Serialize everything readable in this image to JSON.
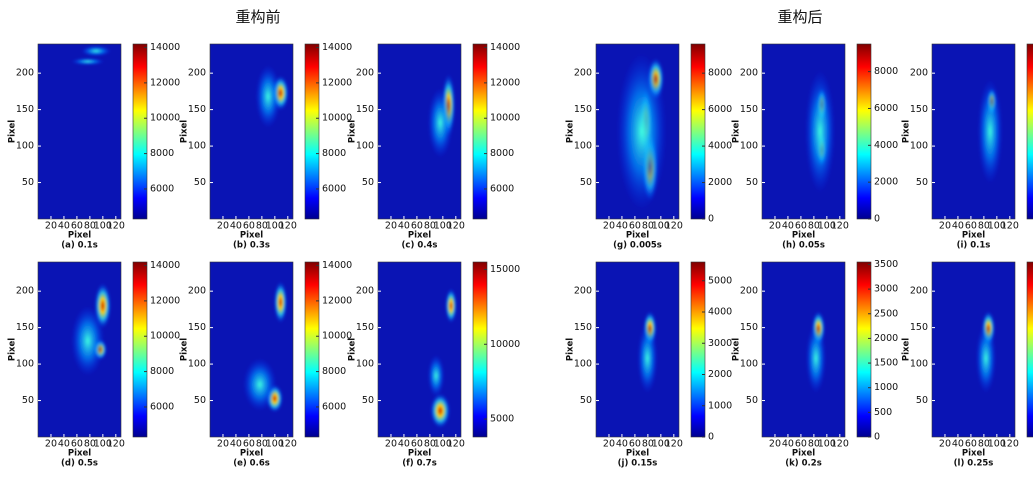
{
  "headings": [
    "重构前",
    "重构后"
  ],
  "chart_data": [
    {
      "type": "heatmap",
      "title": "(a) 0.1s",
      "xlabel": "Pixel",
      "ylabel": "Pixel",
      "xlim": [
        0,
        128
      ],
      "ylim": [
        0,
        240
      ],
      "xticks": [
        20,
        40,
        60,
        80,
        100,
        120
      ],
      "yticks": [
        50,
        100,
        150,
        200
      ],
      "clim": [
        4300,
        14200
      ],
      "cticks": [
        6000,
        8000,
        10000,
        12000,
        14000
      ]
    },
    {
      "type": "heatmap",
      "title": "(b) 0.3s",
      "xlabel": "Pixel",
      "ylabel": "Pixel",
      "xlim": [
        0,
        128
      ],
      "ylim": [
        0,
        240
      ],
      "xticks": [
        20,
        40,
        60,
        80,
        100,
        120
      ],
      "yticks": [
        50,
        100,
        150,
        200
      ],
      "clim": [
        4300,
        14200
      ],
      "cticks": [
        6000,
        8000,
        10000,
        12000,
        14000
      ]
    },
    {
      "type": "heatmap",
      "title": "(c) 0.4s",
      "xlabel": "Pixel",
      "ylabel": "Pixel",
      "xlim": [
        0,
        128
      ],
      "ylim": [
        0,
        240
      ],
      "xticks": [
        20,
        40,
        60,
        80,
        100,
        120
      ],
      "yticks": [
        50,
        100,
        150,
        200
      ],
      "clim": [
        4300,
        14200
      ],
      "cticks": [
        6000,
        8000,
        10000,
        12000,
        14000
      ]
    },
    {
      "type": "heatmap",
      "title": "(d) 0.5s",
      "xlabel": "Pixel",
      "ylabel": "Pixel",
      "xlim": [
        0,
        128
      ],
      "ylim": [
        0,
        240
      ],
      "xticks": [
        20,
        40,
        60,
        80,
        100,
        120
      ],
      "yticks": [
        50,
        100,
        150,
        200
      ],
      "clim": [
        4300,
        14200
      ],
      "cticks": [
        6000,
        8000,
        10000,
        12000,
        14000
      ]
    },
    {
      "type": "heatmap",
      "title": "(e) 0.6s",
      "xlabel": "Pixel",
      "ylabel": "Pixel",
      "xlim": [
        0,
        128
      ],
      "ylim": [
        0,
        240
      ],
      "xticks": [
        20,
        40,
        60,
        80,
        100,
        120
      ],
      "yticks": [
        50,
        100,
        150,
        200
      ],
      "clim": [
        4300,
        14200
      ],
      "cticks": [
        6000,
        8000,
        10000,
        12000,
        14000
      ]
    },
    {
      "type": "heatmap",
      "title": "(f) 0.7s",
      "xlabel": "Pixel",
      "ylabel": "Pixel",
      "xlim": [
        0,
        128
      ],
      "ylim": [
        0,
        240
      ],
      "xticks": [
        20,
        40,
        60,
        80,
        100,
        120
      ],
      "yticks": [
        50,
        100,
        150,
        200
      ],
      "clim": [
        3800,
        15500
      ],
      "cticks": [
        5000,
        10000,
        15000
      ]
    },
    {
      "type": "heatmap",
      "title": "(g) 0.005s",
      "xlabel": "Pixel",
      "ylabel": "Pixel",
      "xlim": [
        0,
        128
      ],
      "ylim": [
        0,
        240
      ],
      "xticks": [
        20,
        40,
        60,
        80,
        100,
        120
      ],
      "yticks": [
        50,
        100,
        150,
        200
      ],
      "clim": [
        0,
        9600
      ],
      "cticks": [
        0,
        2000,
        4000,
        6000,
        8000
      ]
    },
    {
      "type": "heatmap",
      "title": "(h) 0.05s",
      "xlabel": "Pixel",
      "ylabel": "Pixel",
      "xlim": [
        0,
        128
      ],
      "ylim": [
        0,
        240
      ],
      "xticks": [
        20,
        40,
        60,
        80,
        100,
        120
      ],
      "yticks": [
        50,
        100,
        150,
        200
      ],
      "clim": [
        0,
        9500
      ],
      "cticks": [
        0,
        2000,
        4000,
        6000,
        8000
      ]
    },
    {
      "type": "heatmap",
      "title": "(i) 0.1s",
      "xlabel": "Pixel",
      "ylabel": "Pixel",
      "xlim": [
        0,
        128
      ],
      "ylim": [
        0,
        240
      ],
      "xticks": [
        20,
        40,
        60,
        80,
        100,
        120
      ],
      "yticks": [
        50,
        100,
        150,
        200
      ]
    },
    {
      "type": "heatmap",
      "title": "(j) 0.15s",
      "xlabel": "Pixel",
      "ylabel": "Pixel",
      "xlim": [
        0,
        128
      ],
      "ylim": [
        0,
        240
      ],
      "xticks": [
        20,
        40,
        60,
        80,
        100,
        120
      ],
      "yticks": [
        50,
        100,
        150,
        200
      ],
      "clim": [
        0,
        5600
      ],
      "cticks": [
        0,
        1000,
        2000,
        3000,
        4000,
        5000
      ]
    },
    {
      "type": "heatmap",
      "title": "(k) 0.2s",
      "xlabel": "Pixel",
      "ylabel": "Pixel",
      "xlim": [
        0,
        128
      ],
      "ylim": [
        0,
        240
      ],
      "xticks": [
        20,
        40,
        60,
        80,
        100,
        120
      ],
      "yticks": [
        50,
        100,
        150,
        200
      ],
      "clim": [
        0,
        3550
      ],
      "cticks": [
        0,
        500,
        1000,
        1500,
        2000,
        2500,
        3000,
        3500
      ]
    },
    {
      "type": "heatmap",
      "title": "(l) 0.25s",
      "xlabel": "Pixel",
      "ylabel": "Pixel",
      "xlim": [
        0,
        128
      ],
      "ylim": [
        0,
        240
      ],
      "xticks": [
        20,
        40,
        60,
        80,
        100,
        120
      ],
      "yticks": [
        50,
        100,
        150,
        200
      ]
    }
  ]
}
